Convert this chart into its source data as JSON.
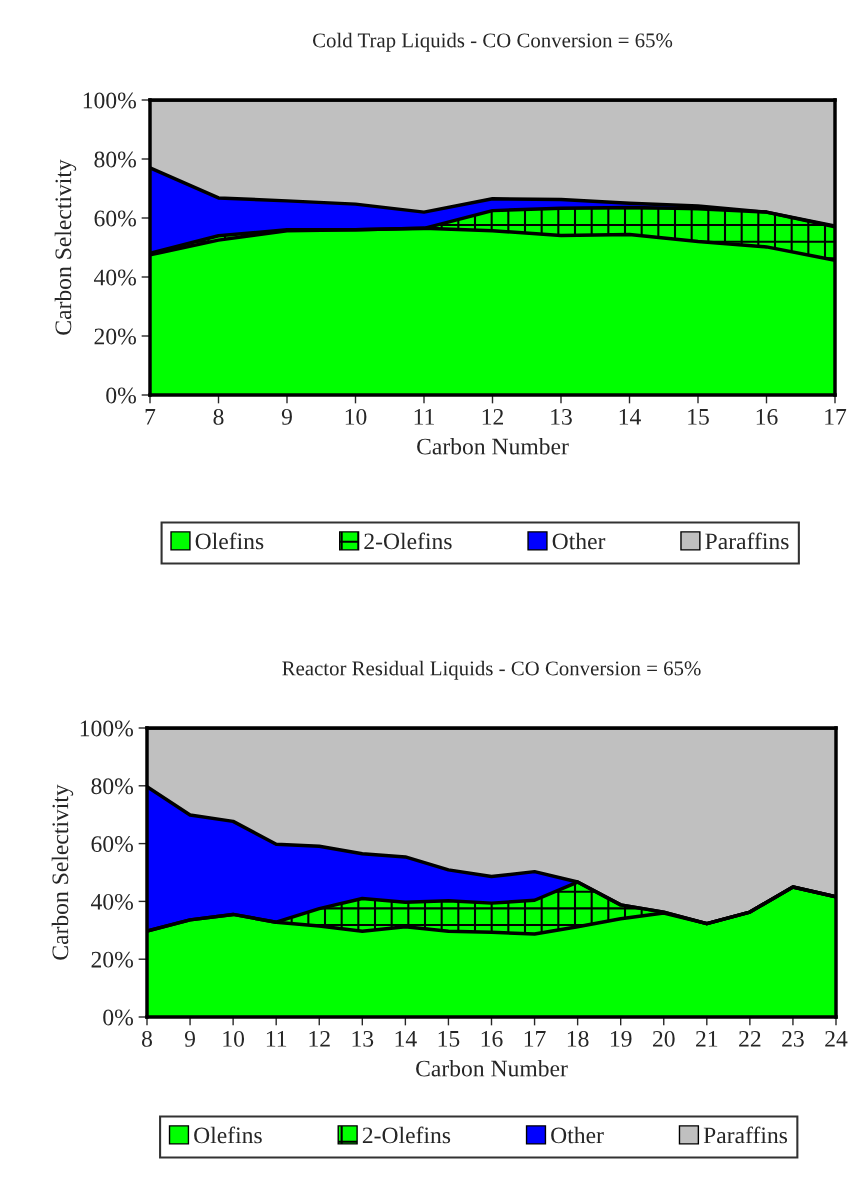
{
  "chart_data": [
    {
      "type": "area",
      "stacked": true,
      "title": "Cold Trap Liquids - CO Conversion = 65%",
      "xlabel": "Carbon Number",
      "ylabel": "Carbon Selectivity",
      "x": [
        7,
        8,
        9,
        10,
        11,
        12,
        13,
        14,
        15,
        16,
        17
      ],
      "series": [
        {
          "name": "Olefins",
          "color": "#00ff00",
          "values": [
            47.5,
            52.5,
            55.7,
            56,
            56.5,
            55.7,
            54.1,
            54.4,
            52,
            50.2,
            45.7
          ]
        },
        {
          "name": "2-Olefins",
          "color": "#00ff00",
          "values": [
            0.5,
            1.5,
            0.3,
            0,
            0,
            6.8,
            9.2,
            9.2,
            11.1,
            11.8,
            11.3
          ]
        },
        {
          "name": "Other",
          "color": "#0000ff",
          "values": [
            29,
            12.8,
            9.8,
            8.7,
            5.5,
            4,
            3,
            1.4,
            1,
            0,
            0.3
          ]
        },
        {
          "name": "Paraffins",
          "color": "#c0c0c0",
          "values": [
            23,
            33.2,
            34.2,
            35.3,
            38,
            33.5,
            33.7,
            35,
            35.9,
            38,
            42.7
          ]
        }
      ],
      "xlim": [
        7,
        17
      ],
      "xticks": [
        7,
        8,
        9,
        10,
        11,
        12,
        13,
        14,
        15,
        16,
        17
      ],
      "ylim": [
        0,
        100
      ],
      "yticks": [
        {
          "value": 0,
          "label": "0%"
        },
        {
          "value": 20,
          "label": "20%"
        },
        {
          "value": 40,
          "label": "40%"
        },
        {
          "value": 60,
          "label": "60%"
        },
        {
          "value": 80,
          "label": "80%"
        },
        {
          "value": 100,
          "label": "100%"
        }
      ],
      "legend": "bottom"
    },
    {
      "type": "area",
      "stacked": true,
      "title": "Reactor Residual Liquids - CO Conversion = 65%",
      "xlabel": "Carbon Number",
      "ylabel": "Carbon Selectivity",
      "x": [
        8,
        9,
        10,
        11,
        12,
        13,
        14,
        15,
        16,
        17,
        18,
        19,
        20,
        21,
        22,
        23,
        24
      ],
      "series": [
        {
          "name": "Olefins",
          "color": "#00ff00",
          "values": [
            29.7,
            33.6,
            35.5,
            32.8,
            31.5,
            29.7,
            31.2,
            29.7,
            29.3,
            28.7,
            31.2,
            34,
            36,
            32.3,
            36.3,
            45,
            41.6
          ]
        },
        {
          "name": "2-Olefins",
          "color": "#00ff00",
          "values": [
            0,
            0,
            0,
            0,
            6,
            11.3,
            8.5,
            10.5,
            10.1,
            11.7,
            15.5,
            4.8,
            0.3,
            0,
            0,
            0,
            0
          ]
        },
        {
          "name": "Other",
          "color": "#0000ff",
          "values": [
            50,
            36.3,
            32.2,
            27,
            21.6,
            15.5,
            15.7,
            10.7,
            9.2,
            9.9,
            0,
            0,
            0,
            0,
            0,
            0,
            0
          ]
        },
        {
          "name": "Paraffins",
          "color": "#c0c0c0",
          "values": [
            20.3,
            30.1,
            32.3,
            40.2,
            40.9,
            43.5,
            44.6,
            49.1,
            51.4,
            49.7,
            53.3,
            61.2,
            63.7,
            67.7,
            63.7,
            55,
            58.4
          ]
        }
      ],
      "xlim": [
        8,
        24
      ],
      "xticks": [
        8,
        9,
        10,
        11,
        12,
        13,
        14,
        15,
        16,
        17,
        18,
        19,
        20,
        21,
        22,
        23,
        24
      ],
      "ylim": [
        0,
        100
      ],
      "yticks": [
        {
          "value": 0,
          "label": "0%"
        },
        {
          "value": 20,
          "label": "20%"
        },
        {
          "value": 40,
          "label": "40%"
        },
        {
          "value": 60,
          "label": "60%"
        },
        {
          "value": 80,
          "label": "80%"
        },
        {
          "value": 100,
          "label": "100%"
        }
      ],
      "legend": "bottom"
    }
  ]
}
